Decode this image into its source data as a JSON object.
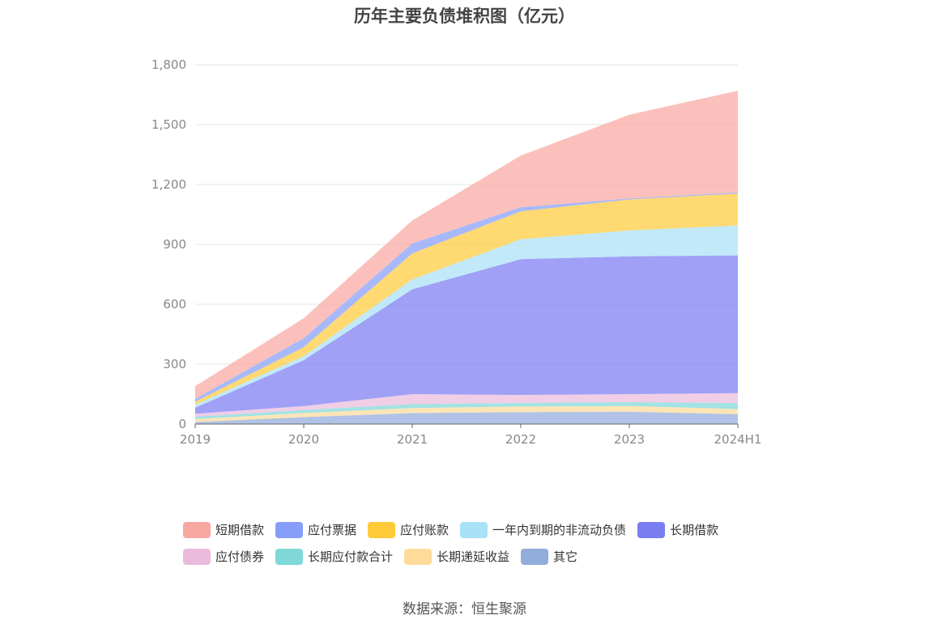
{
  "chart_data": {
    "type": "area",
    "stacked": true,
    "title": "历年主要负债堆积图（亿元）",
    "source": "数据来源：恒生聚源",
    "categories": [
      "2019",
      "2020",
      "2021",
      "2022",
      "2023",
      "2024H1"
    ],
    "y_ticks": [
      "0",
      "300",
      "600",
      "900",
      "1,200",
      "1,500",
      "1,800"
    ],
    "ylim": [
      0,
      1800
    ],
    "grid": true,
    "legend_position": "bottom",
    "series": [
      {
        "name": "其它",
        "color": "#92acdc",
        "values": [
          10,
          35,
          55,
          60,
          62,
          50
        ]
      },
      {
        "name": "长期递延收益",
        "color": "#ffdb9a",
        "values": [
          15,
          20,
          25,
          28,
          28,
          25
        ]
      },
      {
        "name": "长期应付款合计",
        "color": "#80d8d8",
        "values": [
          12,
          15,
          20,
          18,
          20,
          30
        ]
      },
      {
        "name": "应付债券",
        "color": "#eabbdd",
        "values": [
          15,
          20,
          50,
          40,
          40,
          50
        ]
      },
      {
        "name": "长期借款",
        "color": "#7a7cf2",
        "values": [
          30,
          230,
          525,
          680,
          690,
          690
        ]
      },
      {
        "name": "一年内到期的非流动负债",
        "color": "#a9e1f7",
        "values": [
          15,
          20,
          50,
          100,
          130,
          150
        ]
      },
      {
        "name": "应付账款",
        "color": "#ffca3a",
        "values": [
          15,
          45,
          130,
          140,
          155,
          160
        ]
      },
      {
        "name": "应付票据",
        "color": "#869ef9",
        "values": [
          15,
          45,
          50,
          20,
          5,
          5
        ]
      },
      {
        "name": "短期借款",
        "color": "#f9a7a1",
        "values": [
          63,
          100,
          115,
          259,
          420,
          510
        ]
      }
    ]
  },
  "legend": {
    "rows": [
      [
        {
          "label": "短期借款",
          "color": "#f9a7a1"
        },
        {
          "label": "应付票据",
          "color": "#869ef9"
        },
        {
          "label": "应付账款",
          "color": "#ffca3a"
        },
        {
          "label": "一年内到期的非流动负债",
          "color": "#a9e1f7"
        },
        {
          "label": "长期借款",
          "color": "#7a7cf2"
        }
      ],
      [
        {
          "label": "应付债券",
          "color": "#eabbdd"
        },
        {
          "label": "长期应付款合计",
          "color": "#80d8d8"
        },
        {
          "label": "长期递延收益",
          "color": "#ffdb9a"
        },
        {
          "label": "其它",
          "color": "#92acdc"
        }
      ]
    ]
  }
}
